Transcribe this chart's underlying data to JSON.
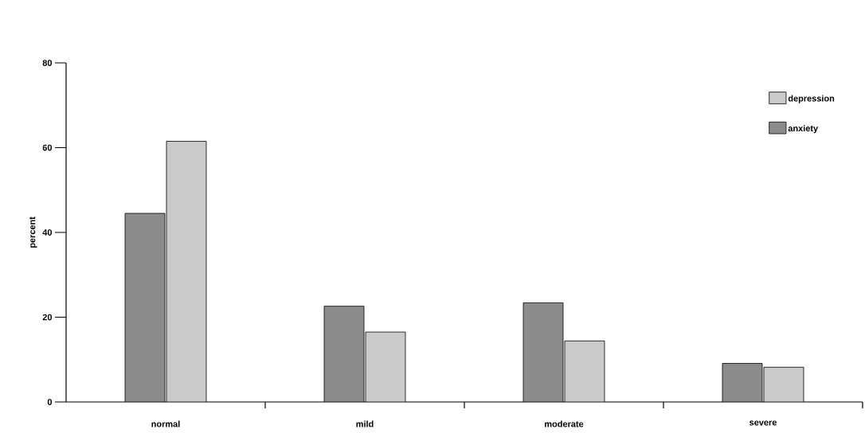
{
  "chart_data": {
    "type": "bar",
    "ylabel": "percent",
    "categories": [
      "normal",
      "mild",
      "moderate",
      "severe"
    ],
    "series": [
      {
        "name": "anxiety",
        "color": "#8c8c8c",
        "values": [
          44.5,
          22.6,
          23.4,
          9.1
        ]
      },
      {
        "name": "depression",
        "color": "#cacaca",
        "values": [
          61.5,
          16.5,
          14.4,
          8.2
        ]
      }
    ],
    "ylim": [
      0,
      80
    ],
    "yticks": [
      0,
      20,
      40,
      60,
      80
    ],
    "grid": false,
    "legend": "top right"
  }
}
